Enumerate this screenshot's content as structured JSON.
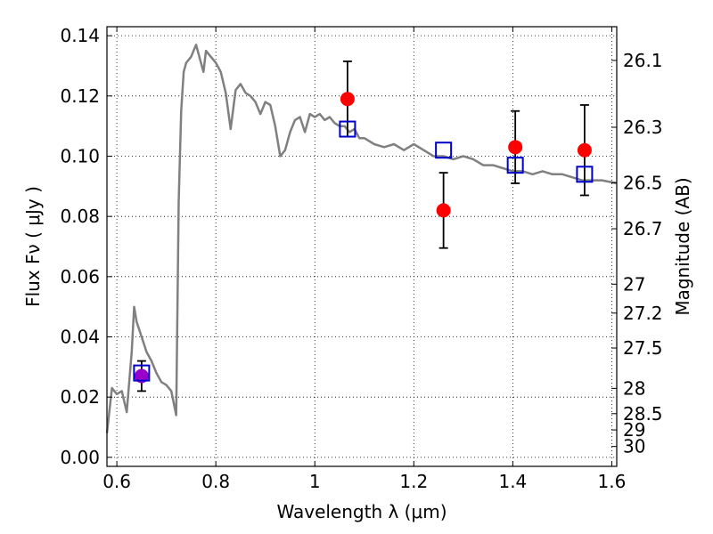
{
  "chart_data": {
    "type": "line",
    "xlabel": "Wavelength  λ (μm)",
    "ylabel_left": "Flux  Fν  ( μJy )",
    "ylabel_right": "Magnitude (AB)",
    "xlim": [
      0.58,
      1.61
    ],
    "ylim": [
      -0.003,
      0.143
    ],
    "x_ticks": [
      0.6,
      0.8,
      1.0,
      1.2,
      1.4,
      1.6
    ],
    "x_tick_labels": [
      "0.6",
      "0.8",
      "1",
      "1.2",
      "1.4",
      "1.6"
    ],
    "y_ticks": [
      0.0,
      0.02,
      0.04,
      0.06,
      0.08,
      0.1,
      0.12,
      0.14
    ],
    "y_tick_labels": [
      "0.00",
      "0.02",
      "0.04",
      "0.06",
      "0.08",
      "0.10",
      "0.12",
      "0.14"
    ],
    "right_ticks": [
      {
        "label": "26.1",
        "flux": 0.1318
      },
      {
        "label": "26.3",
        "flux": 0.1096
      },
      {
        "label": "26.5",
        "flux": 0.0912
      },
      {
        "label": "26.7",
        "flux": 0.0759
      },
      {
        "label": "27",
        "flux": 0.0575
      },
      {
        "label": "27.2",
        "flux": 0.0479
      },
      {
        "label": "27.5",
        "flux": 0.0363
      },
      {
        "label": "28",
        "flux": 0.0229
      },
      {
        "label": "28.5",
        "flux": 0.0145
      },
      {
        "label": "29",
        "flux": 0.0091
      },
      {
        "label": "30",
        "flux": 0.0036
      }
    ],
    "grid": true,
    "series": [
      {
        "kind": "line",
        "color": "#808080",
        "x": [
          0.58,
          0.59,
          0.6,
          0.61,
          0.62,
          0.63,
          0.635,
          0.64,
          0.65,
          0.66,
          0.67,
          0.68,
          0.69,
          0.7,
          0.71,
          0.72,
          0.725,
          0.73,
          0.735,
          0.74,
          0.75,
          0.76,
          0.77,
          0.775,
          0.78,
          0.79,
          0.8,
          0.81,
          0.82,
          0.83,
          0.84,
          0.85,
          0.86,
          0.87,
          0.88,
          0.89,
          0.9,
          0.91,
          0.92,
          0.93,
          0.94,
          0.95,
          0.96,
          0.97,
          0.98,
          0.99,
          1.0,
          1.01,
          1.02,
          1.03,
          1.04,
          1.05,
          1.06,
          1.07,
          1.08,
          1.09,
          1.1,
          1.12,
          1.14,
          1.16,
          1.18,
          1.2,
          1.22,
          1.24,
          1.26,
          1.28,
          1.3,
          1.32,
          1.34,
          1.36,
          1.38,
          1.4,
          1.42,
          1.44,
          1.46,
          1.48,
          1.5,
          1.52,
          1.54,
          1.56,
          1.58,
          1.61
        ],
        "y": [
          0.008,
          0.023,
          0.021,
          0.022,
          0.015,
          0.035,
          0.05,
          0.045,
          0.04,
          0.035,
          0.032,
          0.028,
          0.025,
          0.024,
          0.022,
          0.014,
          0.085,
          0.115,
          0.128,
          0.131,
          0.133,
          0.137,
          0.131,
          0.128,
          0.135,
          0.133,
          0.131,
          0.128,
          0.121,
          0.109,
          0.122,
          0.124,
          0.121,
          0.12,
          0.118,
          0.114,
          0.118,
          0.117,
          0.11,
          0.1,
          0.102,
          0.108,
          0.112,
          0.113,
          0.108,
          0.114,
          0.113,
          0.114,
          0.112,
          0.113,
          0.111,
          0.11,
          0.11,
          0.108,
          0.109,
          0.106,
          0.106,
          0.104,
          0.103,
          0.104,
          0.102,
          0.104,
          0.102,
          0.1,
          0.1,
          0.099,
          0.1,
          0.099,
          0.097,
          0.097,
          0.096,
          0.095,
          0.095,
          0.094,
          0.095,
          0.094,
          0.094,
          0.093,
          0.092,
          0.092,
          0.092,
          0.091
        ]
      },
      {
        "kind": "points",
        "marker": "circle",
        "color": "#ff0000",
        "x": [
          1.066,
          1.26,
          1.405,
          1.545
        ],
        "y": [
          0.119,
          0.082,
          0.103,
          0.102
        ],
        "err_low": [
          0.0125,
          0.0125,
          0.012,
          0.015
        ],
        "err_high": [
          0.0125,
          0.0125,
          0.012,
          0.015
        ]
      },
      {
        "kind": "points",
        "marker": "circle",
        "color": "#9900cc",
        "x": [
          0.65
        ],
        "y": [
          0.027
        ],
        "err_low": [
          0.005
        ],
        "err_high": [
          0.005
        ]
      },
      {
        "kind": "points",
        "marker": "square",
        "color": "#0000cc",
        "x": [
          0.65,
          1.066,
          1.26,
          1.405,
          1.545
        ],
        "y": [
          0.028,
          0.109,
          0.102,
          0.097,
          0.094
        ]
      }
    ]
  }
}
